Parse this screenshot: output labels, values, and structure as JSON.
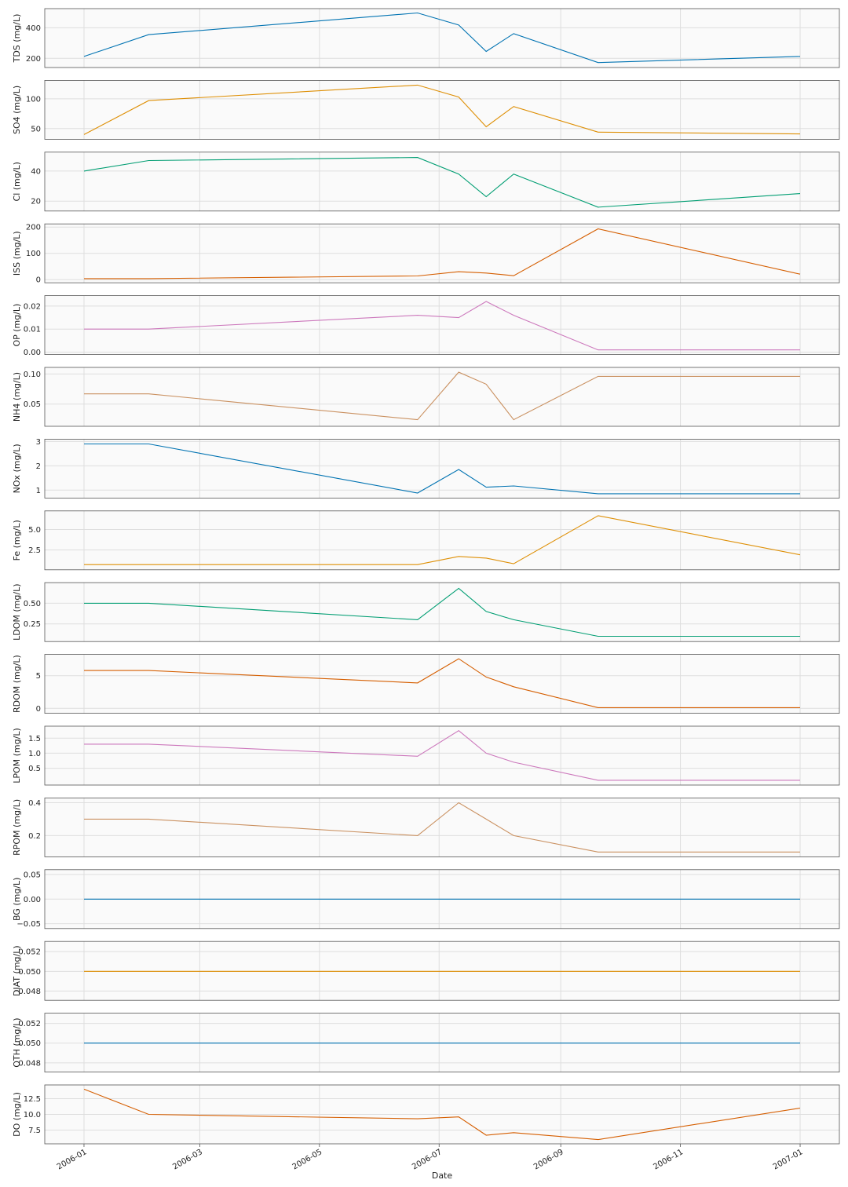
{
  "chart_data": {
    "type": "line",
    "layout": "stacked-subplots-shared-x",
    "xlabel": "Date",
    "x_axis": {
      "type": "date",
      "range": [
        "2005-12-12",
        "2007-01-21"
      ],
      "ticks": [
        "2006-01",
        "2006-03",
        "2006-05",
        "2006-07",
        "2006-09",
        "2006-11",
        "2007-01"
      ]
    },
    "x": [
      "2006-01-01",
      "2006-02-03",
      "2006-06-20",
      "2006-07-11",
      "2006-07-25",
      "2006-08-08",
      "2006-09-20",
      "2007-01-01"
    ],
    "grid": true,
    "background": "#fafafa",
    "panels": [
      {
        "ylabel": "TDS (mg/L)",
        "color": "#0173b2",
        "ylim": [
          155,
          510
        ],
        "yticks": [
          200,
          400
        ],
        "ytick_labels": [
          "200",
          "400"
        ],
        "values": [
          212,
          355,
          497,
          418,
          245,
          362,
          172,
          212
        ]
      },
      {
        "ylabel": "SO4 (mg/L)",
        "color": "#de8f05",
        "ylim": [
          36,
          127
        ],
        "yticks": [
          50,
          100
        ],
        "ytick_labels": [
          "50",
          "100"
        ],
        "values": [
          40,
          97,
          123,
          103,
          53,
          87,
          44,
          41
        ]
      },
      {
        "ylabel": "Cl (mg/L)",
        "color": "#029e73",
        "ylim": [
          15,
          51
        ],
        "yticks": [
          20,
          40
        ],
        "ytick_labels": [
          "20",
          "40"
        ],
        "values": [
          40,
          47,
          49,
          38,
          23,
          38,
          16,
          25
        ]
      },
      {
        "ylabel": "ISS (mg/L)",
        "color": "#d55e00",
        "ylim": [
          -3,
          203
        ],
        "yticks": [
          0,
          100,
          200
        ],
        "ytick_labels": [
          "0",
          "100",
          "200"
        ],
        "values": [
          4,
          4,
          14,
          30,
          25,
          15,
          193,
          21
        ]
      },
      {
        "ylabel": "OP (mg/L)",
        "color": "#cc78bc",
        "ylim": [
          0,
          0.0235
        ],
        "yticks": [
          0,
          0.01,
          0.02
        ],
        "ytick_labels": [
          "0.00",
          "0.01",
          "0.02"
        ],
        "values": [
          0.01,
          0.01,
          0.016,
          0.015,
          0.022,
          0.016,
          0.001,
          0.001
        ]
      },
      {
        "ylabel": "NH4 (mg/L)",
        "color": "#ca9161",
        "ylim": [
          0.017,
          0.107
        ],
        "yticks": [
          0.05,
          0.1
        ],
        "ytick_labels": [
          "0.05",
          "0.10"
        ],
        "values": [
          0.067,
          0.067,
          0.024,
          0.103,
          0.083,
          0.024,
          0.096,
          0.096
        ]
      },
      {
        "ylabel": "NOx (mg/L)",
        "color": "#0173b2",
        "ylim": [
          0.77,
          3.0
        ],
        "yticks": [
          1,
          2,
          3
        ],
        "ytick_labels": [
          "1",
          "2",
          "3"
        ],
        "values": [
          2.9,
          2.9,
          0.88,
          1.85,
          1.12,
          1.17,
          0.85,
          0.85
        ]
      },
      {
        "ylabel": "Fe (mg/L)",
        "color": "#de8f05",
        "ylim": [
          0.35,
          7.0
        ],
        "yticks": [
          2.5,
          5.0
        ],
        "ytick_labels": [
          "2.5",
          "5.0"
        ],
        "values": [
          0.7,
          0.7,
          0.7,
          1.7,
          1.5,
          0.8,
          6.7,
          1.9
        ]
      },
      {
        "ylabel": "LDOM (mg/L)",
        "color": "#029e73",
        "ylim": [
          0.065,
          0.72
        ],
        "yticks": [
          0.25,
          0.5
        ],
        "ytick_labels": [
          "0.25",
          "0.50"
        ],
        "values": [
          0.5,
          0.5,
          0.3,
          0.68,
          0.4,
          0.3,
          0.1,
          0.1
        ]
      },
      {
        "ylabel": "RDOM (mg/L)",
        "color": "#d55e00",
        "ylim": [
          -0.4,
          7.9
        ],
        "yticks": [
          0,
          5
        ],
        "ytick_labels": [
          "0",
          "5"
        ],
        "values": [
          5.8,
          5.8,
          3.9,
          7.6,
          4.8,
          3.3,
          0.1,
          0.1
        ]
      },
      {
        "ylabel": "LPOM (mg/L)",
        "color": "#cc78bc",
        "ylim": [
          0.02,
          1.82
        ],
        "yticks": [
          0.5,
          1.0,
          1.5
        ],
        "ytick_labels": [
          "0.5",
          "1.0",
          "1.5"
        ],
        "values": [
          1.3,
          1.3,
          0.9,
          1.75,
          1.0,
          0.7,
          0.1,
          0.1
        ]
      },
      {
        "ylabel": "RPOM (mg/L)",
        "color": "#ca9161",
        "ylim": [
          0.085,
          0.415
        ],
        "yticks": [
          0.2,
          0.4
        ],
        "ytick_labels": [
          "0.2",
          "0.4"
        ],
        "values": [
          0.3,
          0.3,
          0.2,
          0.4,
          0.3,
          0.2,
          0.1,
          0.1
        ]
      },
      {
        "ylabel": "BG (mg/L)",
        "color": "#0173b2",
        "ylim": [
          -0.055,
          0.055
        ],
        "yticks": [
          -0.05,
          0,
          0.05
        ],
        "ytick_labels": [
          "−0.05",
          "0.00",
          "0.05"
        ],
        "values": [
          0,
          0,
          0,
          0,
          0,
          0,
          0,
          0
        ]
      },
      {
        "ylabel": "DIAT (mg/L)",
        "color": "#de8f05",
        "ylim": [
          0.0473,
          0.0528
        ],
        "yticks": [
          0.048,
          0.05,
          0.052
        ],
        "ytick_labels": [
          "0.048",
          "0.050",
          "0.052"
        ],
        "values": [
          0.05,
          0.05,
          0.05,
          0.05,
          0.05,
          0.05,
          0.05,
          0.05
        ]
      },
      {
        "ylabel": "OTH (mg/L)",
        "color": "#0173b2",
        "ylim": [
          0.0473,
          0.0528
        ],
        "yticks": [
          0.048,
          0.05,
          0.052
        ],
        "ytick_labels": [
          "0.048",
          "0.050",
          "0.052"
        ],
        "values": [
          0.05,
          0.05,
          0.05,
          0.05,
          0.05,
          0.05,
          0.05,
          0.05
        ]
      },
      {
        "ylabel": "DO (mg/L)",
        "color": "#d55e00",
        "ylim": [
          5.7,
          14.3
        ],
        "yticks": [
          7.5,
          10.0,
          12.5
        ],
        "ytick_labels": [
          "7.5",
          "10.0",
          "12.5"
        ],
        "values": [
          14.0,
          10.0,
          9.3,
          9.6,
          6.7,
          7.1,
          6.0,
          11.0
        ]
      }
    ]
  }
}
